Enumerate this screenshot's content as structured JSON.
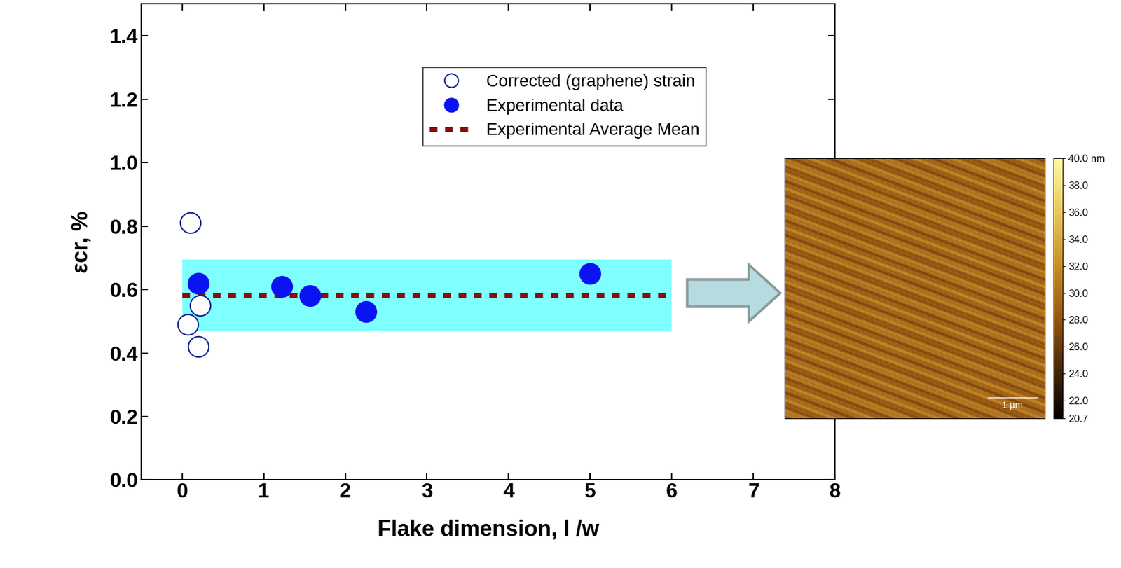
{
  "chart_data": {
    "type": "scatter",
    "xlabel": "Flake dimension, l /w",
    "ylabel": "εcr, %",
    "xlim": [
      -0.5,
      8
    ],
    "xticks": [
      0,
      1,
      2,
      3,
      4,
      5,
      6,
      7,
      8
    ],
    "ylim": [
      0.0,
      1.5
    ],
    "yticks": [
      0.0,
      0.2,
      0.4,
      0.6,
      0.8,
      1.0,
      1.2,
      1.4
    ],
    "legend": "upper center",
    "series": [
      {
        "name": "Corrected (graphene) strain",
        "type": "scatter",
        "marker": "open_circle",
        "color": "#0a1f8f",
        "x": [
          0.1,
          0.22,
          0.07,
          0.2
        ],
        "values": [
          0.81,
          0.55,
          0.49,
          0.42
        ]
      },
      {
        "name": "Experimental data",
        "type": "scatter",
        "marker": "circle",
        "color": "#0a14f0",
        "x": [
          0.2,
          1.22,
          1.57,
          2.25,
          5.0
        ],
        "values": [
          0.62,
          0.61,
          0.58,
          0.53,
          0.65
        ]
      },
      {
        "name": "Experimental Average Mean",
        "type": "line",
        "line_style": "dashed",
        "color": "#8b0a0a",
        "x": [
          0,
          6
        ],
        "values": [
          0.58,
          0.58
        ]
      }
    ],
    "band": {
      "color": "#80ffff",
      "x": [
        0,
        6
      ],
      "y": [
        0.47,
        0.695
      ]
    },
    "inset": {
      "type": "image",
      "colorbar": {
        "range": [
          20.7,
          40.0
        ],
        "ticks": [
          {
            "value": 40.0,
            "label": "40.0 nm"
          },
          38.0,
          36.0,
          34.0,
          32.0,
          30.0,
          28.0,
          26.0,
          24.0,
          22.0,
          20.7
        ]
      },
      "scale_bar": "1 µm"
    }
  }
}
